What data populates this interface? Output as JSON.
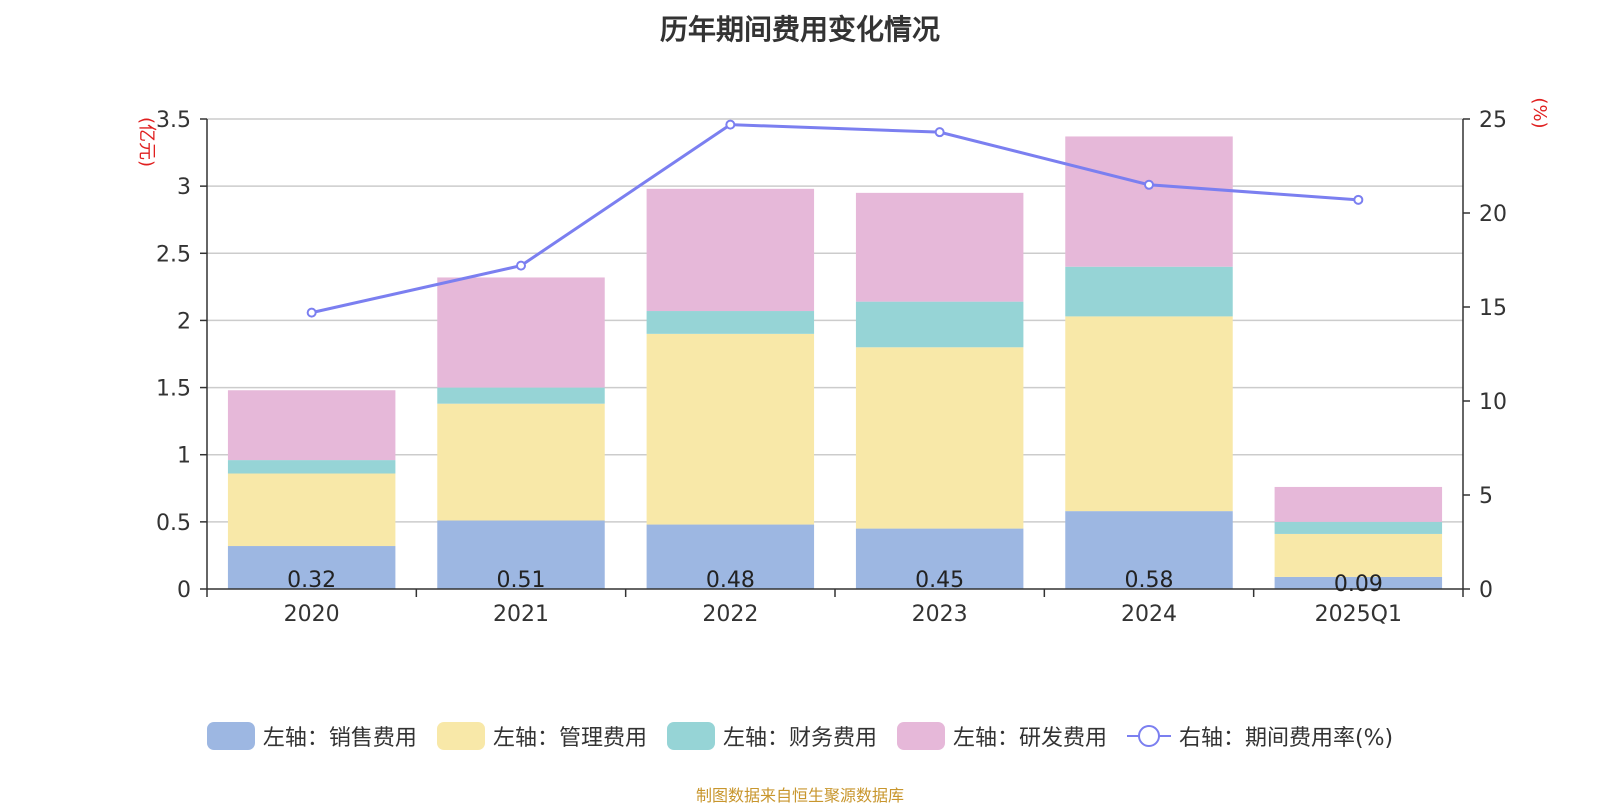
{
  "chart_data": {
    "type": "bar",
    "title": "历年期间费用变化情况",
    "categories": [
      "2020",
      "2021",
      "2022",
      "2023",
      "2024",
      "2025Q1"
    ],
    "left_axis_unit": "(亿元)",
    "right_axis_unit": "(%)",
    "ylim": [
      0,
      3.5
    ],
    "yticks": [
      "0",
      "0.5",
      "1",
      "1.5",
      "2",
      "2.5",
      "3",
      "3.5"
    ],
    "y2lim": [
      0,
      25
    ],
    "y2ticks": [
      "0",
      "5",
      "10",
      "15",
      "20",
      "25"
    ],
    "grid": true,
    "legend_position": "bottom",
    "series": [
      {
        "name": "左轴：销售费用",
        "type": "bar",
        "axis": "left",
        "color": "#9db7e2",
        "values": [
          0.32,
          0.51,
          0.48,
          0.45,
          0.58,
          0.09
        ],
        "labels": [
          "0.32",
          "0.51",
          "0.48",
          "0.45",
          "0.58",
          "0.09"
        ]
      },
      {
        "name": "左轴：管理费用",
        "type": "bar",
        "axis": "left",
        "color": "#f8e8a8",
        "values": [
          0.54,
          0.87,
          1.42,
          1.35,
          1.45,
          0.32
        ]
      },
      {
        "name": "左轴：财务费用",
        "type": "bar",
        "axis": "left",
        "color": "#96d4d6",
        "values": [
          0.1,
          0.12,
          0.17,
          0.34,
          0.37,
          0.09
        ]
      },
      {
        "name": "左轴：研发费用",
        "type": "bar",
        "axis": "left",
        "color": "#e6b8d9",
        "values": [
          0.52,
          0.82,
          0.91,
          0.81,
          0.97,
          0.26
        ]
      },
      {
        "name": "右轴：期间费用率(%)",
        "type": "line",
        "axis": "right",
        "color": "#7b7ff0",
        "values": [
          14.7,
          17.2,
          24.7,
          24.3,
          21.5,
          20.7
        ]
      }
    ]
  },
  "source": "制图数据来自恒生聚源数据库"
}
